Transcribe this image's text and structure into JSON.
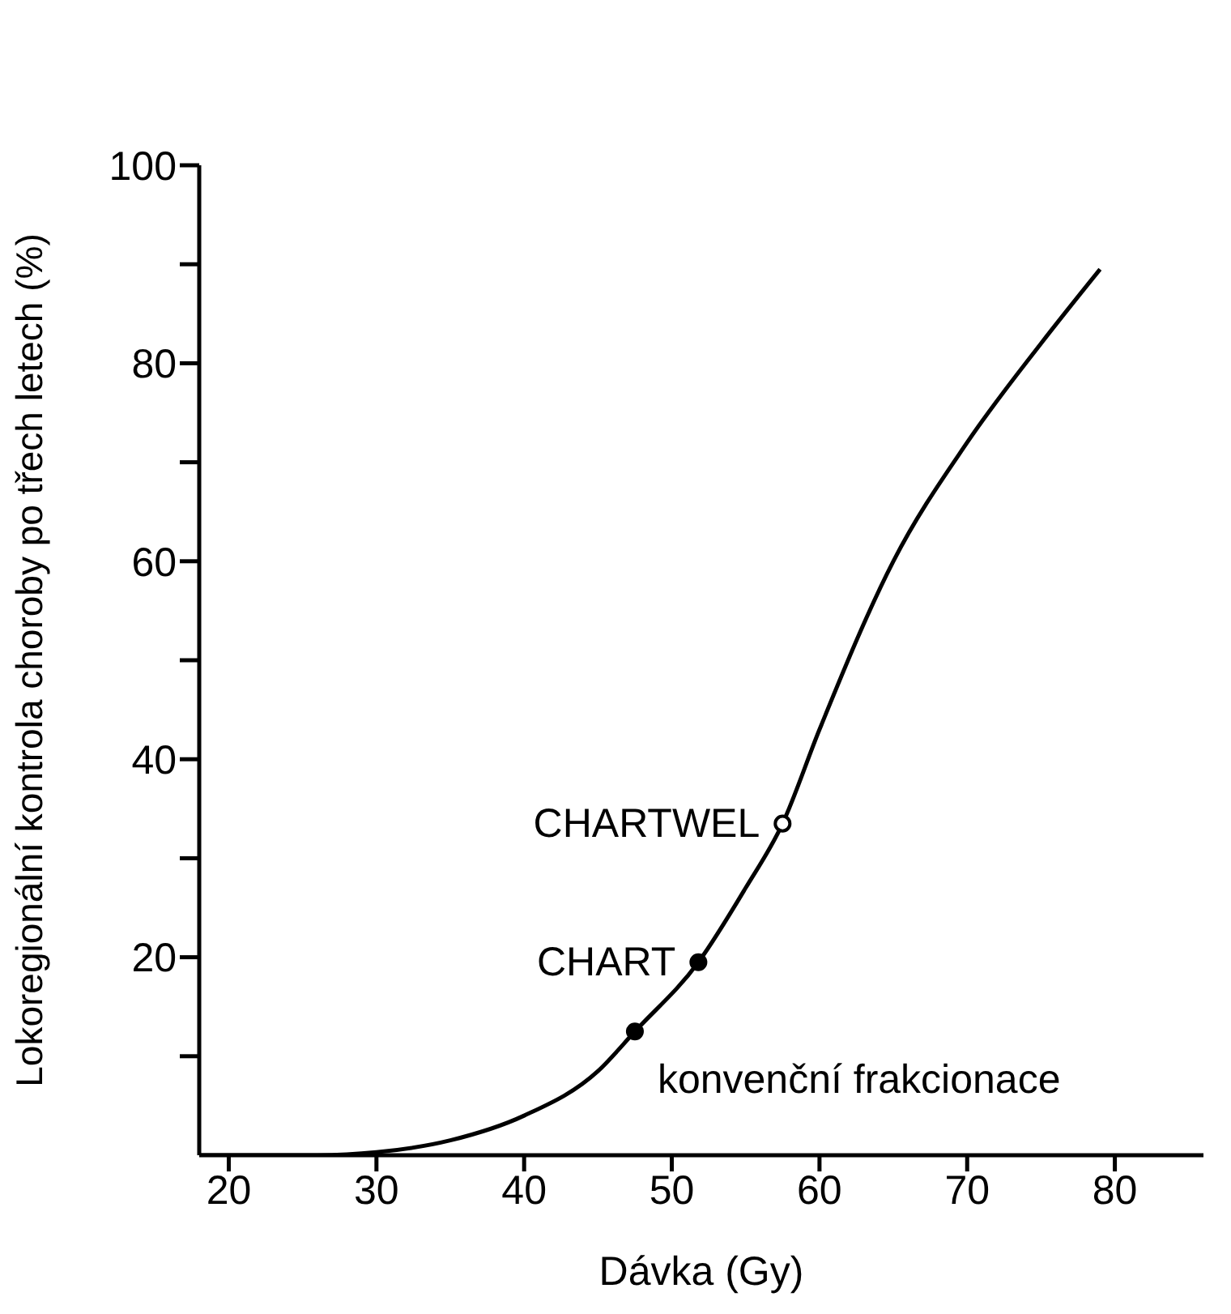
{
  "chart_data": {
    "type": "line",
    "xlabel": "Dávka (Gy)",
    "ylabel": "Lokoregionální kontrola choroby po třech letech (%)",
    "xlim": [
      18,
      86
    ],
    "xticks": [
      20,
      30,
      40,
      50,
      60,
      70,
      80
    ],
    "ylim": [
      0,
      100
    ],
    "yticks": [
      {
        "value": 10,
        "label": null
      },
      20,
      {
        "value": 30,
        "label": null
      },
      40,
      {
        "value": 50,
        "label": null
      },
      60,
      {
        "value": 70,
        "label": null
      },
      80,
      {
        "value": 90,
        "label": null
      },
      100
    ],
    "grid": false,
    "legend": false,
    "series": [
      {
        "color": "#000000",
        "marker": "none",
        "line_style": "solid",
        "x": [
          18,
          22,
          26,
          30,
          35,
          40,
          45,
          47.5,
          51.8,
          55,
          57.5,
          60,
          65,
          70,
          75,
          79
        ],
        "values": [
          0,
          0,
          0,
          0.3,
          1.5,
          4,
          8.5,
          12.5,
          19.5,
          27,
          33.5,
          43,
          60,
          72,
          82,
          89.5
        ]
      },
      {
        "type": "scatter",
        "color": "#000000",
        "colors": [
          "#000000",
          "#000000",
          "#ffffff"
        ],
        "marker": "circle",
        "x": [
          47.5,
          51.8,
          57.5
        ],
        "values": [
          12.5,
          19.5,
          33.5
        ]
      }
    ],
    "annotations": [
      {
        "text": "konvenční frakcionace",
        "x": 47.5,
        "y": 12.5
      },
      {
        "text": "CHART",
        "x": 51.8,
        "y": 19.5
      },
      {
        "text": "CHARTWEL",
        "x": 57.5,
        "y": 33.5
      }
    ]
  }
}
